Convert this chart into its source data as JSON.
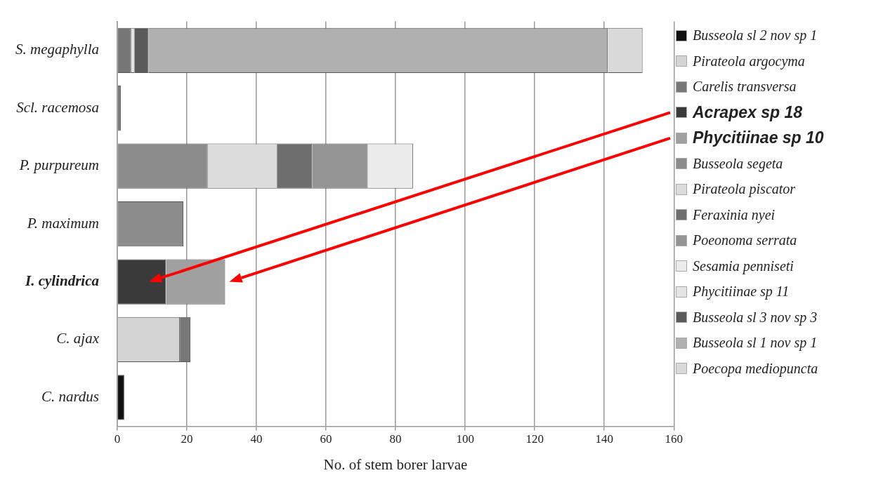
{
  "chart_data": {
    "type": "bar",
    "orientation": "horizontal",
    "stacked": true,
    "xlabel": "No. of stem borer larvae",
    "categories": [
      "S. megaphylla",
      "Scl. racemosa",
      "P. purpureum",
      "P. maximum",
      "I. cylindrica",
      "C. ajax",
      "C. nardus"
    ],
    "series": [
      {
        "name": "Busseola sl 2 nov sp 1",
        "color": "#111111",
        "values": [
          null,
          null,
          null,
          null,
          null,
          null,
          2
        ]
      },
      {
        "name": "Pirateola argocyma",
        "color": "#d4d4d4",
        "values": [
          null,
          null,
          null,
          null,
          null,
          18,
          null
        ]
      },
      {
        "name": "Carelis transversa",
        "color": "#777777",
        "values": [
          4,
          1,
          null,
          null,
          null,
          3,
          null
        ]
      },
      {
        "name": "Acrapex sp 18",
        "color": "#3a3a3a",
        "values": [
          null,
          null,
          null,
          null,
          14,
          null,
          null
        ]
      },
      {
        "name": "Phycitiinae sp 10",
        "color": "#a0a0a0",
        "values": [
          null,
          null,
          null,
          null,
          17,
          null,
          null
        ]
      },
      {
        "name": "Busseola segeta",
        "color": "#8c8c8c",
        "values": [
          null,
          null,
          26,
          19,
          null,
          null,
          null
        ]
      },
      {
        "name": "Pirateola piscator",
        "color": "#dcdcdc",
        "values": [
          null,
          null,
          20,
          null,
          null,
          null,
          null
        ]
      },
      {
        "name": "Feraxinia nyei",
        "color": "#6e6e6e",
        "values": [
          null,
          null,
          10,
          null,
          null,
          null,
          null
        ]
      },
      {
        "name": "Poeonoma serrata",
        "color": "#949494",
        "values": [
          null,
          null,
          16,
          null,
          null,
          null,
          null
        ]
      },
      {
        "name": "Sesamia penniseti",
        "color": "#ececec",
        "values": [
          null,
          null,
          13,
          null,
          null,
          null,
          null
        ]
      },
      {
        "name": "Phycitiinae sp 11",
        "color": "#e4e4e4",
        "values": [
          1,
          null,
          null,
          null,
          null,
          null,
          null
        ]
      },
      {
        "name": "Busseola sl 3 nov sp 3",
        "color": "#5a5a5a",
        "values": [
          4,
          null,
          null,
          null,
          null,
          null,
          null
        ]
      },
      {
        "name": "Busseola sl 1 nov sp 1",
        "color": "#b0b0b0",
        "values": [
          132,
          null,
          null,
          null,
          null,
          null,
          null
        ]
      },
      {
        "name": "Poecopa mediopuncta",
        "color": "#dadada",
        "values": [
          10,
          null,
          null,
          null,
          null,
          null,
          null
        ]
      }
    ],
    "xlim": [
      0,
      160
    ],
    "xticks": [
      0,
      20,
      40,
      60,
      80,
      100,
      120,
      140,
      160
    ],
    "grid": "x",
    "legend": "right"
  }
}
